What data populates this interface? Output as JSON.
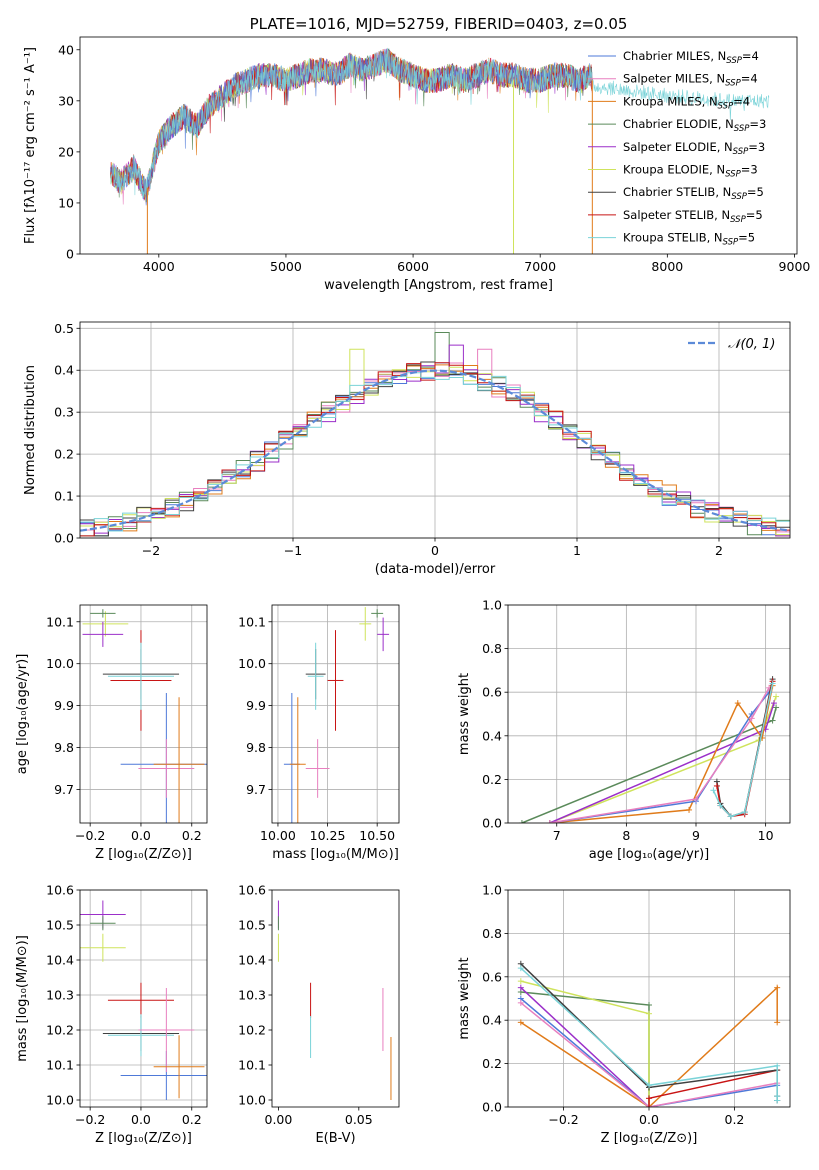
{
  "colors": {
    "chabrier_miles": "#4e79d8",
    "salpeter_miles": "#e87fbf",
    "kroupa_miles": "#e07b1a",
    "chabrier_elodie": "#5a8a5a",
    "salpeter_elodie": "#9b2fc9",
    "kroupa_elodie": "#cfe35c",
    "chabrier_stelib": "#404040",
    "salpeter_stelib": "#c81414",
    "kroupa_stelib": "#7ad3d8",
    "gauss": "#5b8ad8"
  },
  "chart_data": [
    {
      "id": "spectrum",
      "type": "line",
      "title": "PLATE=1016, MJD=52759, FIBERID=0403, z=0.05",
      "xlabel": "wavelength [Angstrom, rest frame]",
      "ylabel": "Flux [fλ10⁻¹⁷ erg cm⁻² s⁻¹ A⁻¹]",
      "xlim": [
        3380,
        9020
      ],
      "ylim": [
        0,
        42.5
      ],
      "xticks": [
        4000,
        5000,
        6000,
        7000,
        8000,
        9000
      ],
      "yticks": [
        0,
        10,
        20,
        30,
        40
      ],
      "grid": false,
      "legend_position": "right",
      "legend": [
        {
          "label": "Chabrier MILES, N",
          "sub": "SSP",
          "suffix": "=4",
          "color_key": "chabrier_miles"
        },
        {
          "label": "Salpeter MILES, N",
          "sub": "SSP",
          "suffix": "=4",
          "color_key": "salpeter_miles"
        },
        {
          "label": "Kroupa MILES, N",
          "sub": "SSP",
          "suffix": "=4",
          "color_key": "kroupa_miles"
        },
        {
          "label": "Chabrier ELODIE, N",
          "sub": "SSP",
          "suffix": "=3",
          "color_key": "chabrier_elodie"
        },
        {
          "label": "Salpeter ELODIE, N",
          "sub": "SSP",
          "suffix": "=3",
          "color_key": "salpeter_elodie"
        },
        {
          "label": "Kroupa ELODIE, N",
          "sub": "SSP",
          "suffix": "=3",
          "color_key": "kroupa_elodie"
        },
        {
          "label": "Chabrier STELIB, N",
          "sub": "SSP",
          "suffix": "=5",
          "color_key": "chabrier_stelib"
        },
        {
          "label": "Salpeter STELIB, N",
          "sub": "SSP",
          "suffix": "=5",
          "color_key": "salpeter_stelib"
        },
        {
          "label": "Kroupa STELIB, N",
          "sub": "SSP",
          "suffix": "=5",
          "color_key": "kroupa_stelib"
        }
      ],
      "envelope": {
        "x": [
          3620,
          3700,
          3800,
          3900,
          4000,
          4100,
          4200,
          4300,
          4400,
          4500,
          4600,
          4700,
          4800,
          4900,
          5000,
          5100,
          5200,
          5300,
          5400,
          5500,
          5600,
          5700,
          5800,
          5900,
          6000,
          6100,
          6200,
          6300,
          6400,
          6500,
          6600,
          6700,
          6800,
          6900,
          7000,
          7100,
          7200,
          7300,
          7400,
          7410
        ],
        "y": [
          16,
          14,
          17,
          12,
          22,
          25,
          27,
          25,
          29,
          31,
          33,
          34,
          35,
          35,
          34,
          35,
          36,
          36,
          35,
          37,
          36,
          37,
          38,
          36,
          35,
          34,
          34,
          35,
          34,
          35,
          36,
          35,
          35,
          34,
          34,
          35,
          35,
          34,
          35,
          33
        ]
      },
      "cutoffs": [
        {
          "x": 3910,
          "y_from": 13,
          "color_key": "kroupa_miles"
        },
        {
          "x": 6790,
          "y_from": 34,
          "color_key": "kroupa_elodie"
        },
        {
          "x": 7410,
          "y_from": 34,
          "color_key": "kroupa_miles"
        }
      ],
      "segments": [
        {
          "color_key": "kroupa_stelib",
          "x": [
            7410,
            8000,
            8500,
            8800
          ],
          "y": [
            33,
            31,
            30,
            30
          ]
        }
      ]
    },
    {
      "id": "residuals",
      "type": "line",
      "xlabel": "(data-model)/error",
      "ylabel": "Normed distribution",
      "xlim": [
        -2.5,
        2.5
      ],
      "ylim": [
        0,
        0.515
      ],
      "xticks": [
        -2,
        -1,
        0,
        1,
        2
      ],
      "yticks": [
        0.0,
        0.1,
        0.2,
        0.3,
        0.4,
        0.5
      ],
      "grid": true,
      "legend_position": "top-right",
      "legend_label": "𝒩(0, 1)",
      "bin_width": 0.1,
      "bin_start": -2.5,
      "series_color_keys": [
        "chabrier_miles",
        "salpeter_miles",
        "kroupa_miles",
        "chabrier_elodie",
        "salpeter_elodie",
        "kroupa_elodie",
        "chabrier_stelib",
        "salpeter_stelib",
        "kroupa_stelib"
      ],
      "bumps": [
        {
          "x": -0.55,
          "y": 0.45,
          "color_key": "kroupa_elodie"
        },
        {
          "x": 0.05,
          "y": 0.49,
          "color_key": "chabrier_elodie"
        },
        {
          "x": 0.15,
          "y": 0.46,
          "color_key": "salpeter_elodie"
        },
        {
          "x": 0.35,
          "y": 0.45,
          "color_key": "salpeter_miles"
        }
      ]
    },
    {
      "id": "age_vs_Z",
      "type": "scatter",
      "xlabel": "Z [log₁₀(Z/Z⊙)]",
      "ylabel": "age  [log₁₀(age/yr)]",
      "xlim": [
        -0.24,
        0.26
      ],
      "ylim": [
        9.62,
        10.14
      ],
      "xticks": [
        -0.2,
        0.0,
        0.2
      ],
      "yticks": [
        9.7,
        9.8,
        9.9,
        10.0,
        10.1
      ],
      "grid": true,
      "points": [
        {
          "color_key": "kroupa_elodie",
          "x": -0.14,
          "y": 10.095,
          "xerr": 0.09,
          "yerr": 0.03
        },
        {
          "color_key": "chabrier_elodie",
          "x": -0.15,
          "y": 10.12,
          "xerr": 0.05,
          "yerr": 0.01
        },
        {
          "color_key": "salpeter_elodie",
          "x": -0.15,
          "y": 10.07,
          "xerr": 0.08,
          "yerr": 0.03
        },
        {
          "color_key": "chabrier_stelib",
          "x": 0.0,
          "y": 9.975,
          "xerr": 0.15,
          "yerr": 0.06
        },
        {
          "color_key": "salpeter_stelib",
          "x": 0.0,
          "y": 9.96,
          "xerr": 0.12,
          "yerr": 0.12
        },
        {
          "color_key": "kroupa_stelib",
          "x": 0.0,
          "y": 9.97,
          "xerr": 0.13,
          "yerr": 0.08
        },
        {
          "color_key": "chabrier_miles",
          "x": 0.1,
          "y": 9.76,
          "xerr": 0.18,
          "yerr": 0.17
        },
        {
          "color_key": "salpeter_miles",
          "x": 0.1,
          "y": 9.75,
          "xerr": 0.11,
          "yerr": 0.07
        },
        {
          "color_key": "kroupa_miles",
          "x": 0.15,
          "y": 9.76,
          "xerr": 0.1,
          "yerr": 0.16
        }
      ]
    },
    {
      "id": "age_vs_mass",
      "type": "scatter",
      "xlabel": "mass [log₁₀(M/M⊙)]",
      "ylabel": "",
      "xlim": [
        9.97,
        10.61
      ],
      "ylim": [
        9.62,
        10.14
      ],
      "xticks": [
        10.0,
        10.25,
        10.5
      ],
      "xticklabels": [
        "10.00",
        "10.25",
        "10.50"
      ],
      "yticks": [
        9.7,
        9.8,
        9.9,
        10.0,
        10.1
      ],
      "grid": true,
      "points": [
        {
          "color_key": "kroupa_elodie",
          "x": 10.44,
          "y": 10.095,
          "xerr": 0.03,
          "yerr": 0.04
        },
        {
          "color_key": "chabrier_elodie",
          "x": 10.5,
          "y": 10.12,
          "xerr": 0.03,
          "yerr": 0.01
        },
        {
          "color_key": "salpeter_elodie",
          "x": 10.53,
          "y": 10.07,
          "xerr": 0.03,
          "yerr": 0.04
        },
        {
          "color_key": "chabrier_stelib",
          "x": 10.19,
          "y": 9.975,
          "xerr": 0.05,
          "yerr": 0.06
        },
        {
          "color_key": "salpeter_stelib",
          "x": 10.29,
          "y": 9.96,
          "xerr": 0.04,
          "yerr": 0.12
        },
        {
          "color_key": "kroupa_stelib",
          "x": 10.19,
          "y": 9.97,
          "xerr": 0.04,
          "yerr": 0.08
        },
        {
          "color_key": "chabrier_miles",
          "x": 10.07,
          "y": 9.76,
          "xerr": 0.04,
          "yerr": 0.17
        },
        {
          "color_key": "salpeter_miles",
          "x": 10.2,
          "y": 9.75,
          "xerr": 0.06,
          "yerr": 0.07
        },
        {
          "color_key": "kroupa_miles",
          "x": 10.1,
          "y": 9.76,
          "xerr": 0.04,
          "yerr": 0.16
        }
      ]
    },
    {
      "id": "weight_vs_age",
      "type": "line",
      "xlabel": "age  [log₁₀(age/yr)]",
      "ylabel": "mass weight",
      "xlim": [
        6.3,
        10.35
      ],
      "ylim": [
        0,
        1.0
      ],
      "xticks": [
        7,
        8,
        9,
        10
      ],
      "yticks": [
        0.0,
        0.2,
        0.4,
        0.6,
        0.8,
        1.0
      ],
      "grid": true,
      "series": [
        {
          "color_key": "chabrier_elodie",
          "x": [
            6.5,
            10.1,
            10.15
          ],
          "y": [
            0.0,
            0.47,
            0.53
          ]
        },
        {
          "color_key": "kroupa_elodie",
          "x": [
            6.9,
            9.9,
            10.15
          ],
          "y": [
            0.0,
            0.38,
            0.58
          ]
        },
        {
          "color_key": "salpeter_elodie",
          "x": [
            6.9,
            10.0,
            10.12
          ],
          "y": [
            0.0,
            0.43,
            0.55
          ]
        },
        {
          "color_key": "kroupa_miles",
          "x": [
            6.9,
            8.9,
            9.6,
            9.95,
            10.1
          ],
          "y": [
            0.0,
            0.06,
            0.55,
            0.39,
            0.63
          ]
        },
        {
          "color_key": "chabrier_miles",
          "x": [
            6.9,
            9.0,
            9.8,
            10.05
          ],
          "y": [
            0.0,
            0.1,
            0.5,
            0.6
          ]
        },
        {
          "color_key": "salpeter_miles",
          "x": [
            6.9,
            9.0,
            9.8,
            10.05
          ],
          "y": [
            0.0,
            0.11,
            0.48,
            0.62
          ]
        },
        {
          "color_key": "chabrier_stelib",
          "x": [
            9.3,
            9.35,
            9.5,
            9.7,
            10.1
          ],
          "y": [
            0.19,
            0.09,
            0.03,
            0.05,
            0.66
          ]
        },
        {
          "color_key": "salpeter_stelib",
          "x": [
            9.3,
            9.35,
            9.5,
            9.7,
            10.1
          ],
          "y": [
            0.17,
            0.08,
            0.03,
            0.04,
            0.65
          ]
        },
        {
          "color_key": "kroupa_stelib",
          "x": [
            9.25,
            9.35,
            9.5,
            9.7,
            10.1
          ],
          "y": [
            0.15,
            0.08,
            0.03,
            0.05,
            0.64
          ]
        }
      ]
    },
    {
      "id": "mass_vs_Z",
      "type": "scatter",
      "xlabel": "Z [log₁₀(Z/Z⊙)]",
      "ylabel": "mass [log₁₀(M/M⊙)]",
      "xlim": [
        -0.24,
        0.26
      ],
      "ylim": [
        9.98,
        10.6
      ],
      "xticks": [
        -0.2,
        0.0,
        0.2
      ],
      "yticks": [
        10.0,
        10.1,
        10.2,
        10.3,
        10.4,
        10.5,
        10.6
      ],
      "grid": true,
      "points": [
        {
          "color_key": "salpeter_elodie",
          "x": -0.15,
          "y": 10.53,
          "xerr": 0.09,
          "yerr": 0.04
        },
        {
          "color_key": "chabrier_elodie",
          "x": -0.15,
          "y": 10.505,
          "xerr": 0.05,
          "yerr": 0.02
        },
        {
          "color_key": "kroupa_elodie",
          "x": -0.15,
          "y": 10.435,
          "xerr": 0.09,
          "yerr": 0.04
        },
        {
          "color_key": "salpeter_stelib",
          "x": 0.0,
          "y": 10.285,
          "xerr": 0.13,
          "yerr": 0.05
        },
        {
          "color_key": "chabrier_stelib",
          "x": 0.0,
          "y": 10.19,
          "xerr": 0.15,
          "yerr": 0.05
        },
        {
          "color_key": "kroupa_stelib",
          "x": 0.0,
          "y": 10.185,
          "xerr": 0.13,
          "yerr": 0.06
        },
        {
          "color_key": "chabrier_miles",
          "x": 0.1,
          "y": 10.07,
          "xerr": 0.18,
          "yerr": 0.07
        },
        {
          "color_key": "salpeter_miles",
          "x": 0.1,
          "y": 10.2,
          "xerr": 0.11,
          "yerr": 0.12
        },
        {
          "color_key": "kroupa_miles",
          "x": 0.15,
          "y": 10.095,
          "xerr": 0.1,
          "yerr": 0.09
        }
      ]
    },
    {
      "id": "mass_vs_ebv",
      "type": "scatter",
      "xlabel": "E(B-V)",
      "ylabel": "",
      "xlim": [
        -0.004,
        0.075
      ],
      "ylim": [
        9.98,
        10.6
      ],
      "xticks": [
        0.0,
        0.05
      ],
      "xticklabels": [
        "0.00",
        "0.05"
      ],
      "yticks": [
        10.0,
        10.1,
        10.2,
        10.3,
        10.4,
        10.5,
        10.6
      ],
      "grid": false,
      "points": [
        {
          "color_key": "salpeter_elodie",
          "x": 0.0,
          "y": 10.53,
          "xerr": 0.0,
          "yerr": 0.04
        },
        {
          "color_key": "chabrier_elodie",
          "x": 0.0,
          "y": 10.505,
          "xerr": 0.0,
          "yerr": 0.02
        },
        {
          "color_key": "kroupa_elodie",
          "x": 0.0,
          "y": 10.435,
          "xerr": 0.0,
          "yerr": 0.04
        },
        {
          "color_key": "salpeter_stelib",
          "x": 0.02,
          "y": 10.285,
          "xerr": 0.0,
          "yerr": 0.05
        },
        {
          "color_key": "kroupa_stelib",
          "x": 0.02,
          "y": 10.18,
          "xerr": 0.0,
          "yerr": 0.06
        },
        {
          "color_key": "salpeter_miles",
          "x": 0.065,
          "y": 10.23,
          "xerr": 0.0,
          "yerr": 0.09
        },
        {
          "color_key": "kroupa_miles",
          "x": 0.07,
          "y": 10.09,
          "xerr": 0.0,
          "yerr": 0.09
        }
      ]
    },
    {
      "id": "weight_vs_Z",
      "type": "line",
      "xlabel": "Z [log₁₀(Z/Z⊙)]",
      "ylabel": "mass weight",
      "xlim": [
        -0.33,
        0.33
      ],
      "ylim": [
        0,
        1.0
      ],
      "xticks": [
        -0.2,
        0.0,
        0.2
      ],
      "yticks": [
        0.0,
        0.2,
        0.4,
        0.6,
        0.8,
        1.0
      ],
      "grid": true,
      "series": [
        {
          "color_key": "chabrier_elodie",
          "x": [
            -0.3,
            0.0,
            0.0
          ],
          "y": [
            0.53,
            0.47,
            0.0
          ]
        },
        {
          "color_key": "kroupa_elodie",
          "x": [
            -0.3,
            0.0,
            0.0
          ],
          "y": [
            0.58,
            0.43,
            0.0
          ]
        },
        {
          "color_key": "salpeter_elodie",
          "x": [
            -0.3,
            0.0
          ],
          "y": [
            0.55,
            0.0
          ]
        },
        {
          "color_key": "kroupa_miles",
          "x": [
            -0.3,
            0.0,
            0.3,
            0.3
          ],
          "y": [
            0.39,
            0.0,
            0.55,
            0.39
          ]
        },
        {
          "color_key": "chabrier_miles",
          "x": [
            -0.3,
            0.0,
            0.3
          ],
          "y": [
            0.5,
            0.0,
            0.1
          ]
        },
        {
          "color_key": "salpeter_miles",
          "x": [
            -0.3,
            0.0,
            0.3
          ],
          "y": [
            0.48,
            0.0,
            0.11
          ]
        },
        {
          "color_key": "salpeter_stelib",
          "x": [
            0.0,
            0.0,
            0.3
          ],
          "y": [
            0.0,
            0.04,
            0.17
          ]
        },
        {
          "color_key": "chabrier_stelib",
          "x": [
            -0.3,
            0.0,
            0.3,
            0.3,
            0.3
          ],
          "y": [
            0.66,
            0.09,
            0.17,
            0.05,
            0.03
          ]
        },
        {
          "color_key": "kroupa_stelib",
          "x": [
            -0.3,
            0.0,
            0.3,
            0.3,
            0.3
          ],
          "y": [
            0.64,
            0.1,
            0.19,
            0.05,
            0.03
          ]
        }
      ]
    }
  ]
}
